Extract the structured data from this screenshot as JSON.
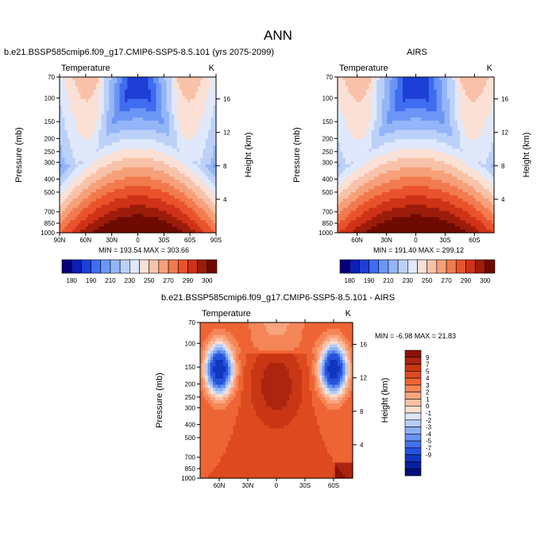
{
  "page": {
    "title": "ANN"
  },
  "chart_data": [
    {
      "type": "heatmap",
      "title": "b.e21.BSSP585cmip6.f09_g17.CMIP6-SSP5-8.5.101 (yrs 2075-2099)",
      "variable": "Temperature",
      "units": "K",
      "ylabel": "Pressure (mb)",
      "ylabel_right": "Height (km)",
      "x_ticks": [
        "90N",
        "60N",
        "30N",
        "0",
        "30S",
        "60S",
        "90S"
      ],
      "x_range": [
        90,
        -90
      ],
      "y_ticks": [
        "70",
        "100",
        "150",
        "200",
        "250",
        "300",
        "400",
        "500",
        "700",
        "850",
        "1000"
      ],
      "y_range_mb": [
        70,
        1000
      ],
      "y_scale": "log",
      "height_ticks_km": [
        "16",
        "12",
        "8",
        "4"
      ],
      "stats": "MIN = 193.54   MAX = 303.66",
      "min": 193.54,
      "max": 303.66,
      "field": "temperature",
      "colorbar_ref": "abs"
    },
    {
      "type": "heatmap",
      "title": "AIRS",
      "variable": "Temperature",
      "units": "K",
      "ylabel": "Pressure (mb)",
      "ylabel_right": "Height (km)",
      "x_ticks": [
        "60N",
        "30N",
        "0",
        "30S",
        "60S"
      ],
      "x_range": [
        80,
        -80
      ],
      "y_ticks": [
        "70",
        "100",
        "150",
        "200",
        "250",
        "300",
        "400",
        "500",
        "700",
        "850",
        "1000"
      ],
      "y_range_mb": [
        70,
        1000
      ],
      "y_scale": "log",
      "height_ticks_km": [
        "16",
        "12",
        "8",
        "4"
      ],
      "stats": "MIN = 191.40   MAX = 299.12",
      "min": 191.4,
      "max": 299.12,
      "field": "temperature",
      "colorbar_ref": "abs"
    },
    {
      "type": "heatmap",
      "title": "b.e21.BSSP585cmip6.f09_g17.CMIP6-SSP5-8.5.101 - AIRS",
      "variable": "Temperature",
      "units": "K",
      "ylabel": "Pressure (mb)",
      "ylabel_right": "Height (km)",
      "x_ticks": [
        "60N",
        "30N",
        "0",
        "30S",
        "60S"
      ],
      "x_range": [
        80,
        -80
      ],
      "y_ticks": [
        "70",
        "100",
        "150",
        "200",
        "250",
        "300",
        "400",
        "500",
        "700",
        "850",
        "1000"
      ],
      "y_range_mb": [
        70,
        1000
      ],
      "y_scale": "log",
      "height_ticks_km": [
        "16",
        "12",
        "8",
        "4"
      ],
      "stats": "MIN =  -6.98   MAX =  21.83",
      "min": -6.98,
      "max": 21.83,
      "field": "difference",
      "colorbar_ref": "diff"
    }
  ],
  "colorbars": {
    "abs": {
      "levels": [
        180,
        190,
        200,
        210,
        220,
        230,
        240,
        250,
        260,
        270,
        280,
        290,
        300
      ],
      "labels": [
        "180",
        "190",
        "210",
        "230",
        "250",
        "270",
        "290",
        "300"
      ],
      "colors": [
        "#05007a",
        "#0a1fb3",
        "#1e3fd6",
        "#3f6df0",
        "#6b96f5",
        "#94b5f7",
        "#bcd1f8",
        "#e0e9fb",
        "#fbe0d6",
        "#f8c2a9",
        "#f6a07a",
        "#f27a4f",
        "#e9532c",
        "#cf3217",
        "#9c1c0a",
        "#6e0a00"
      ],
      "orientation": "horizontal"
    },
    "diff": {
      "labels": [
        "9",
        "7",
        "5",
        "4",
        "3",
        "2",
        "1",
        "0",
        "-1",
        "-2",
        "-3",
        "-4",
        "-5",
        "-7",
        "-9"
      ],
      "colors": [
        "#8c1208",
        "#ad240f",
        "#c83614",
        "#de4a1f",
        "#ee6535",
        "#f58657",
        "#f8a47e",
        "#f9c2a6",
        "#fadfd0",
        "#dbe6fb",
        "#b6ccf7",
        "#8eb0f4",
        "#6a92f1",
        "#4372ec",
        "#2553dd",
        "#1136bf",
        "#071f9e",
        "#02107a"
      ],
      "orientation": "vertical"
    }
  }
}
